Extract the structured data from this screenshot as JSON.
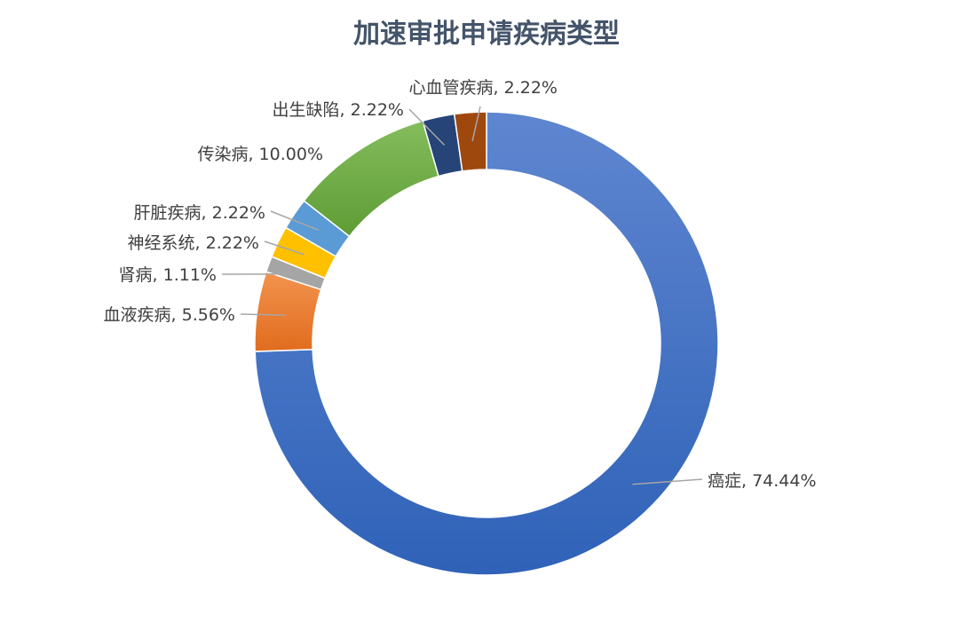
{
  "chart_data": {
    "type": "pie",
    "variant": "doughnut",
    "title": "加速审批申请疾病类型",
    "legend": "none",
    "slices": [
      {
        "name": "癌症",
        "value": 74.44,
        "label": "癌症, 74.44%",
        "color": "#4472c4"
      },
      {
        "name": "血液疾病",
        "value": 5.56,
        "label": "血液疾病, 5.56%",
        "color": "#ed7d31"
      },
      {
        "name": "肾病",
        "value": 1.11,
        "label": "肾病, 1.11%",
        "color": "#a5a5a5"
      },
      {
        "name": "神经系统",
        "value": 2.22,
        "label": "神经系统, 2.22%",
        "color": "#ffc000"
      },
      {
        "name": "肝脏疾病",
        "value": 2.22,
        "label": "肝脏疾病, 2.22%",
        "color": "#5b9bd5"
      },
      {
        "name": "传染病",
        "value": 10.0,
        "label": "传染病, 10.00%",
        "color": "#70ad47"
      },
      {
        "name": "出生缺陷",
        "value": 2.22,
        "label": "出生缺陷, 2.22%",
        "color": "#264478"
      },
      {
        "name": "心血管疾病",
        "value": 2.22,
        "label": "心血管疾病, 2.22%",
        "color": "#9e480e"
      }
    ]
  }
}
